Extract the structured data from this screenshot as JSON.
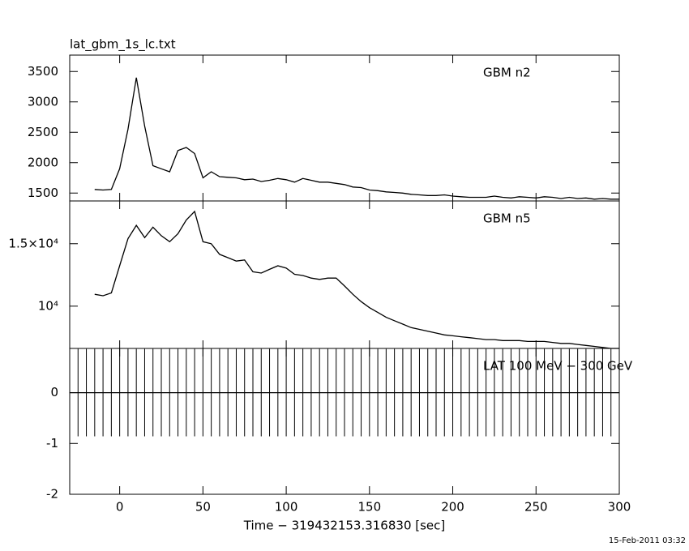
{
  "chart_data": [
    {
      "type": "line",
      "title": "lat_gbm_1s_lc.txt",
      "annotation": "GBM n2",
      "x": [
        -15,
        -10,
        -5,
        0,
        5,
        10,
        15,
        20,
        25,
        30,
        35,
        40,
        45,
        50,
        55,
        60,
        65,
        70,
        75,
        80,
        85,
        90,
        95,
        100,
        105,
        110,
        115,
        120,
        125,
        130,
        135,
        140,
        145,
        150,
        155,
        160,
        165,
        170,
        175,
        180,
        185,
        190,
        195,
        200,
        205,
        210,
        215,
        220,
        225,
        230,
        235,
        240,
        245,
        250,
        255,
        260,
        265,
        270,
        275,
        280,
        285,
        290,
        295,
        300
      ],
      "series": [
        {
          "name": "GBM n2",
          "color": "#000000",
          "values": [
            1560,
            1550,
            1560,
            1900,
            2550,
            3400,
            2600,
            1950,
            1900,
            1850,
            2200,
            2250,
            2150,
            1750,
            1850,
            1770,
            1760,
            1750,
            1720,
            1730,
            1690,
            1710,
            1740,
            1720,
            1680,
            1740,
            1710,
            1680,
            1680,
            1660,
            1640,
            1600,
            1590,
            1550,
            1540,
            1520,
            1510,
            1500,
            1480,
            1470,
            1460,
            1460,
            1470,
            1450,
            1440,
            1430,
            1430,
            1430,
            1450,
            1430,
            1420,
            1440,
            1430,
            1420,
            1440,
            1430,
            1410,
            1430,
            1410,
            1420,
            1400,
            1410,
            1400,
            1400
          ]
        }
      ],
      "ylim": [
        1370,
        3770
      ],
      "yticks": [
        1500,
        2000,
        2500,
        3000,
        3500
      ]
    },
    {
      "type": "line",
      "annotation": "GBM n5",
      "log_y": true,
      "x": [
        -15,
        -10,
        -5,
        0,
        5,
        10,
        15,
        20,
        25,
        30,
        35,
        40,
        45,
        50,
        55,
        60,
        65,
        70,
        75,
        80,
        85,
        90,
        95,
        100,
        105,
        110,
        115,
        120,
        125,
        130,
        135,
        140,
        145,
        150,
        155,
        160,
        165,
        170,
        175,
        180,
        185,
        190,
        195,
        200,
        205,
        210,
        215,
        220,
        225,
        230,
        235,
        240,
        245,
        250,
        255,
        260,
        265,
        270,
        275,
        280,
        285,
        290,
        295,
        300
      ],
      "series": [
        {
          "name": "GBM n5",
          "color": "#000000",
          "values": [
            10800,
            10700,
            10900,
            13000,
            15500,
            16900,
            15600,
            16700,
            15800,
            15200,
            16000,
            17500,
            18500,
            15200,
            15000,
            14000,
            13700,
            13400,
            13500,
            12500,
            12400,
            12700,
            13000,
            12800,
            12300,
            12200,
            12000,
            11900,
            12000,
            12000,
            11400,
            10800,
            10300,
            9900,
            9600,
            9300,
            9100,
            8900,
            8700,
            8600,
            8500,
            8400,
            8300,
            8250,
            8200,
            8150,
            8100,
            8050,
            8050,
            8000,
            8000,
            8000,
            7950,
            7950,
            7950,
            7900,
            7850,
            7850,
            7800,
            7750,
            7700,
            7650,
            7600,
            7600
          ]
        }
      ],
      "ylim": [
        7600,
        19800
      ],
      "yticks": [
        {
          "value": 10000,
          "label": "10⁴"
        },
        {
          "value": 15000,
          "label": "1.5×10⁴"
        }
      ]
    },
    {
      "type": "errorbar",
      "annotation": "LAT 100 MeV − 300 GeV",
      "xlabel": "Time − 319432153.316830 [sec]",
      "x": [
        -30,
        -25,
        -20,
        -15,
        -10,
        -5,
        0,
        5,
        10,
        15,
        20,
        25,
        30,
        35,
        40,
        45,
        50,
        55,
        60,
        65,
        70,
        75,
        80,
        85,
        90,
        95,
        100,
        105,
        110,
        115,
        120,
        125,
        130,
        135,
        140,
        145,
        150,
        155,
        160,
        165,
        170,
        175,
        180,
        185,
        190,
        195,
        200,
        205,
        210,
        215,
        220,
        225,
        230,
        235,
        240,
        245,
        250,
        255,
        260,
        265,
        270,
        275,
        280,
        285,
        290,
        295,
        300
      ],
      "series": [
        {
          "name": "LAT 100 MeV − 300 GeV",
          "color": "#000000",
          "values": [
            0,
            0,
            0,
            0,
            0,
            0,
            0,
            0,
            0,
            0,
            0,
            0,
            0,
            0,
            0,
            0,
            0,
            0,
            0,
            0,
            0,
            0,
            0,
            0,
            0,
            0,
            0,
            0,
            0,
            0,
            0,
            0,
            0,
            0,
            0,
            0,
            0,
            0,
            0,
            0,
            0,
            0,
            0,
            0,
            0,
            0,
            0,
            0,
            0,
            0,
            0,
            0,
            0,
            0,
            0,
            0,
            0,
            0,
            0,
            0,
            0,
            0,
            0,
            0,
            0,
            0,
            0
          ],
          "errors": [
            0.86,
            0.86,
            0.86,
            0.86,
            0.86,
            0.86,
            0.86,
            0.86,
            0.86,
            0.86,
            0.86,
            0.86,
            0.86,
            0.86,
            0.86,
            0.86,
            0.86,
            0.86,
            0.86,
            0.86,
            0.86,
            0.86,
            0.86,
            0.86,
            0.86,
            0.86,
            0.86,
            0.86,
            0.86,
            0.86,
            0.86,
            0.86,
            0.86,
            0.86,
            0.86,
            0.86,
            0.86,
            0.86,
            0.86,
            0.86,
            0.86,
            0.86,
            0.86,
            0.86,
            0.86,
            0.86,
            0.86,
            0.86,
            0.86,
            0.86,
            0.86,
            0.86,
            0.86,
            0.86,
            0.86,
            0.86,
            0.86,
            0.86,
            0.86,
            0.86,
            0.86,
            0.86,
            0.86,
            0.86,
            0.86,
            0.86,
            0.86
          ]
        }
      ],
      "ylim": [
        -2,
        0.87
      ],
      "yticks": [
        -2,
        -1,
        0
      ],
      "xlim": [
        -30,
        300
      ],
      "xticks": [
        0,
        50,
        100,
        150,
        200,
        250,
        300
      ]
    }
  ],
  "footer": "15-Feb-2011 03:32"
}
